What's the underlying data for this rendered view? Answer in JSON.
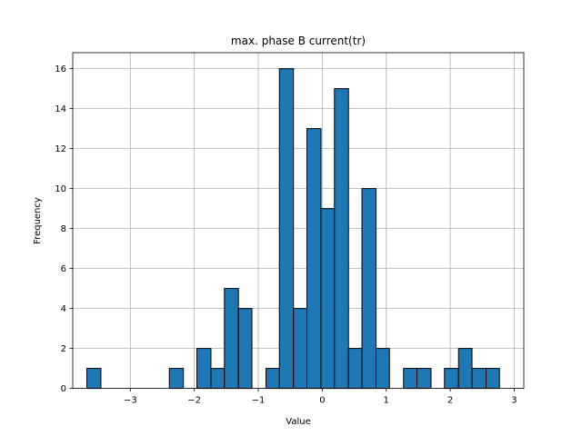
{
  "chart_data": {
    "type": "bar",
    "title": "max. phase B current(tr)",
    "xlabel": "Value",
    "ylabel": "Frequency",
    "xlim": [
      -3.9,
      3.15
    ],
    "ylim": [
      0,
      16.8
    ],
    "x_ticks": [
      -3,
      -2,
      -1,
      0,
      1,
      2,
      3
    ],
    "x_tick_labels": [
      "−3",
      "−2",
      "−1",
      "0",
      "1",
      "2",
      "3"
    ],
    "y_ticks": [
      0,
      2,
      4,
      6,
      8,
      10,
      12,
      14,
      16
    ],
    "y_tick_labels": [
      "0",
      "2",
      "4",
      "6",
      "8",
      "10",
      "12",
      "14",
      "16"
    ],
    "grid": true,
    "bar_color": "#1f77b4",
    "edge_color": "#000000",
    "bins": [
      {
        "x0": -3.68,
        "x1": -3.46,
        "count": 1
      },
      {
        "x0": -3.46,
        "x1": -3.25,
        "count": 0
      },
      {
        "x0": -3.25,
        "x1": -3.03,
        "count": 0
      },
      {
        "x0": -3.03,
        "x1": -2.82,
        "count": 0
      },
      {
        "x0": -2.82,
        "x1": -2.6,
        "count": 0
      },
      {
        "x0": -2.6,
        "x1": -2.39,
        "count": 0
      },
      {
        "x0": -2.39,
        "x1": -2.17,
        "count": 1
      },
      {
        "x0": -2.17,
        "x1": -1.96,
        "count": 0
      },
      {
        "x0": -1.96,
        "x1": -1.74,
        "count": 2
      },
      {
        "x0": -1.74,
        "x1": -1.53,
        "count": 1
      },
      {
        "x0": -1.53,
        "x1": -1.31,
        "count": 5
      },
      {
        "x0": -1.31,
        "x1": -1.1,
        "count": 4
      },
      {
        "x0": -1.1,
        "x1": -0.88,
        "count": 0
      },
      {
        "x0": -0.88,
        "x1": -0.67,
        "count": 1
      },
      {
        "x0": -0.67,
        "x1": -0.45,
        "count": 16
      },
      {
        "x0": -0.45,
        "x1": -0.24,
        "count": 4
      },
      {
        "x0": -0.24,
        "x1": -0.02,
        "count": 13
      },
      {
        "x0": -0.02,
        "x1": 0.19,
        "count": 9
      },
      {
        "x0": 0.19,
        "x1": 0.41,
        "count": 15
      },
      {
        "x0": 0.41,
        "x1": 0.62,
        "count": 2
      },
      {
        "x0": 0.62,
        "x1": 0.84,
        "count": 10
      },
      {
        "x0": 0.84,
        "x1": 1.05,
        "count": 2
      },
      {
        "x0": 1.05,
        "x1": 1.27,
        "count": 0
      },
      {
        "x0": 1.27,
        "x1": 1.48,
        "count": 1
      },
      {
        "x0": 1.48,
        "x1": 1.7,
        "count": 1
      },
      {
        "x0": 1.7,
        "x1": 1.91,
        "count": 0
      },
      {
        "x0": 1.91,
        "x1": 2.13,
        "count": 1
      },
      {
        "x0": 2.13,
        "x1": 2.34,
        "count": 2
      },
      {
        "x0": 2.34,
        "x1": 2.56,
        "count": 1
      },
      {
        "x0": 2.56,
        "x1": 2.77,
        "count": 1
      }
    ]
  }
}
